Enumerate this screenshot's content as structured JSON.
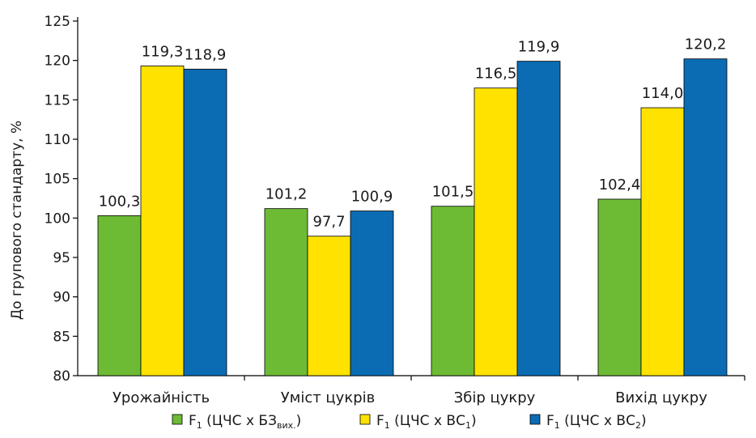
{
  "chart_data": {
    "type": "bar",
    "ylabel": "До групового стандарту, %",
    "xlabel": "",
    "ylim": [
      80,
      125
    ],
    "yticks": [
      80,
      85,
      90,
      95,
      100,
      105,
      110,
      115,
      120,
      125
    ],
    "ytick_labels": [
      "80",
      "85",
      "90",
      "95",
      "100",
      "105",
      "110",
      "115",
      "120",
      "125"
    ],
    "categories": [
      "Урожайність",
      "Уміст цукрів",
      "Збір цукру",
      "Вихід цукру"
    ],
    "series": [
      {
        "name": "F₁ (ЦЧС х БЗвих.)",
        "name_main": "F",
        "name_sub1": "1",
        "name_mid": "  (ЦЧС х БЗ",
        "name_sub2": "вих.",
        "name_end": ")",
        "color": "#6dbb35",
        "values": [
          100.3,
          101.2,
          101.5,
          102.4
        ],
        "labels": [
          "100,3",
          "101,2",
          "101,5",
          "102,4"
        ]
      },
      {
        "name": "F₁ (ЦЧС х ВС₁)",
        "name_main": "F",
        "name_sub1": "1",
        "name_mid": "  (ЦЧС х ВС",
        "name_sub2": "1",
        "name_end": ")",
        "color": "#ffe200",
        "values": [
          119.3,
          97.7,
          116.5,
          114.0
        ],
        "labels": [
          "119,3",
          "97,7",
          "116,5",
          "114,0"
        ]
      },
      {
        "name": "F₁ (ЦЧС х ВС₂)",
        "name_main": "F",
        "name_sub1": "1",
        "name_mid": "  (ЦЧС х ВС",
        "name_sub2": "2",
        "name_end": ")",
        "color": "#0b6cb3",
        "values": [
          118.9,
          100.9,
          119.9,
          120.2
        ],
        "labels": [
          "118,9",
          "100,9",
          "119,9",
          "120,2"
        ]
      }
    ],
    "grid": false,
    "legend_position": "bottom"
  }
}
